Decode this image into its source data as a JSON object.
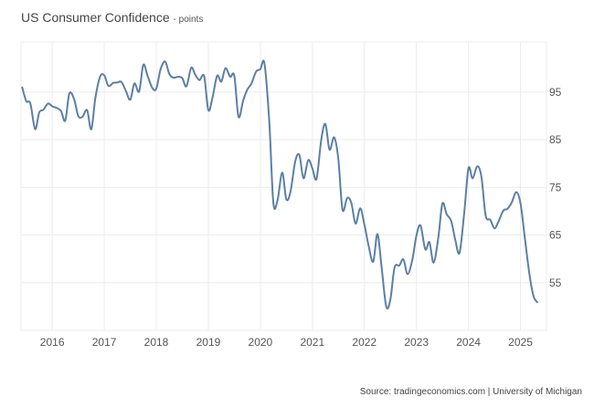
{
  "title": "US Consumer Confidence",
  "unit": "- points",
  "source": "Source: tradingeconomics.com | University of Michigan",
  "colors": {
    "line": "#5b7fa6",
    "grid": "#ececec",
    "text": "#555555"
  },
  "chart_data": {
    "type": "line",
    "title": "US Consumer Confidence",
    "subtitle": "points",
    "xlabel": "",
    "ylabel": "",
    "grid": true,
    "legend": "none",
    "xlim": [
      2015.4,
      2025.5
    ],
    "ylim": [
      45,
      105.5
    ],
    "x_ticks": [
      2016,
      2017,
      2018,
      2019,
      2020,
      2021,
      2022,
      2023,
      2024,
      2025
    ],
    "y_ticks": [
      55,
      65,
      75,
      85,
      95
    ],
    "y_tick_side": "right",
    "series": [
      {
        "name": "US Consumer Confidence",
        "x": [
          2015.42,
          2015.5,
          2015.58,
          2015.67,
          2015.75,
          2015.83,
          2015.92,
          2016.0,
          2016.08,
          2016.17,
          2016.25,
          2016.33,
          2016.42,
          2016.5,
          2016.58,
          2016.67,
          2016.75,
          2016.83,
          2016.92,
          2017.0,
          2017.08,
          2017.17,
          2017.25,
          2017.33,
          2017.42,
          2017.5,
          2017.58,
          2017.67,
          2017.75,
          2017.83,
          2017.92,
          2018.0,
          2018.08,
          2018.17,
          2018.25,
          2018.33,
          2018.42,
          2018.5,
          2018.58,
          2018.67,
          2018.75,
          2018.83,
          2018.92,
          2019.0,
          2019.08,
          2019.17,
          2019.25,
          2019.33,
          2019.42,
          2019.5,
          2019.58,
          2019.67,
          2019.75,
          2019.83,
          2019.92,
          2020.0,
          2020.08,
          2020.17,
          2020.25,
          2020.33,
          2020.42,
          2020.5,
          2020.58,
          2020.67,
          2020.75,
          2020.83,
          2020.92,
          2021.0,
          2021.08,
          2021.17,
          2021.25,
          2021.33,
          2021.42,
          2021.5,
          2021.58,
          2021.67,
          2021.75,
          2021.83,
          2021.92,
          2022.0,
          2022.08,
          2022.17,
          2022.25,
          2022.33,
          2022.42,
          2022.5,
          2022.58,
          2022.67,
          2022.75,
          2022.83,
          2022.92,
          2023.0,
          2023.08,
          2023.17,
          2023.25,
          2023.33,
          2023.42,
          2023.5,
          2023.58,
          2023.67,
          2023.75,
          2023.83,
          2023.92,
          2024.0,
          2024.08,
          2024.17,
          2024.25,
          2024.33,
          2024.42,
          2024.5,
          2024.58,
          2024.67,
          2024.75,
          2024.83,
          2024.92,
          2025.0,
          2025.08,
          2025.17,
          2025.25,
          2025.33
        ],
        "values": [
          96.1,
          93.1,
          92.6,
          87.2,
          90.7,
          91.3,
          92.6,
          92.0,
          91.7,
          91.0,
          89.0,
          94.7,
          93.5,
          90.0,
          89.8,
          91.2,
          87.2,
          93.8,
          98.2,
          98.5,
          96.3,
          96.9,
          97.0,
          97.1,
          95.1,
          93.4,
          96.8,
          95.1,
          100.7,
          98.5,
          95.9,
          95.7,
          99.7,
          101.4,
          98.8,
          98.0,
          98.2,
          97.9,
          96.2,
          100.1,
          98.6,
          97.5,
          98.3,
          91.2,
          93.8,
          98.4,
          97.2,
          100.0,
          98.2,
          98.4,
          89.8,
          93.2,
          95.5,
          96.8,
          99.3,
          99.8,
          101.0,
          89.1,
          71.8,
          72.3,
          78.1,
          72.5,
          74.1,
          80.4,
          81.8,
          76.9,
          80.7,
          79.0,
          76.8,
          84.9,
          88.3,
          82.9,
          85.5,
          80.8,
          70.3,
          72.8,
          71.7,
          67.4,
          70.6,
          67.2,
          62.8,
          59.4,
          65.2,
          58.4,
          50.0,
          51.5,
          58.2,
          58.6,
          59.9,
          56.8,
          59.7,
          64.9,
          67.0,
          62.0,
          63.5,
          59.2,
          64.4,
          71.6,
          69.4,
          67.9,
          63.8,
          61.3,
          69.7,
          79.0,
          76.9,
          79.4,
          77.2,
          69.1,
          68.2,
          66.4,
          67.9,
          70.1,
          70.5,
          71.8,
          74.0,
          71.7,
          64.7,
          57.0,
          52.2,
          50.8
        ]
      }
    ]
  }
}
